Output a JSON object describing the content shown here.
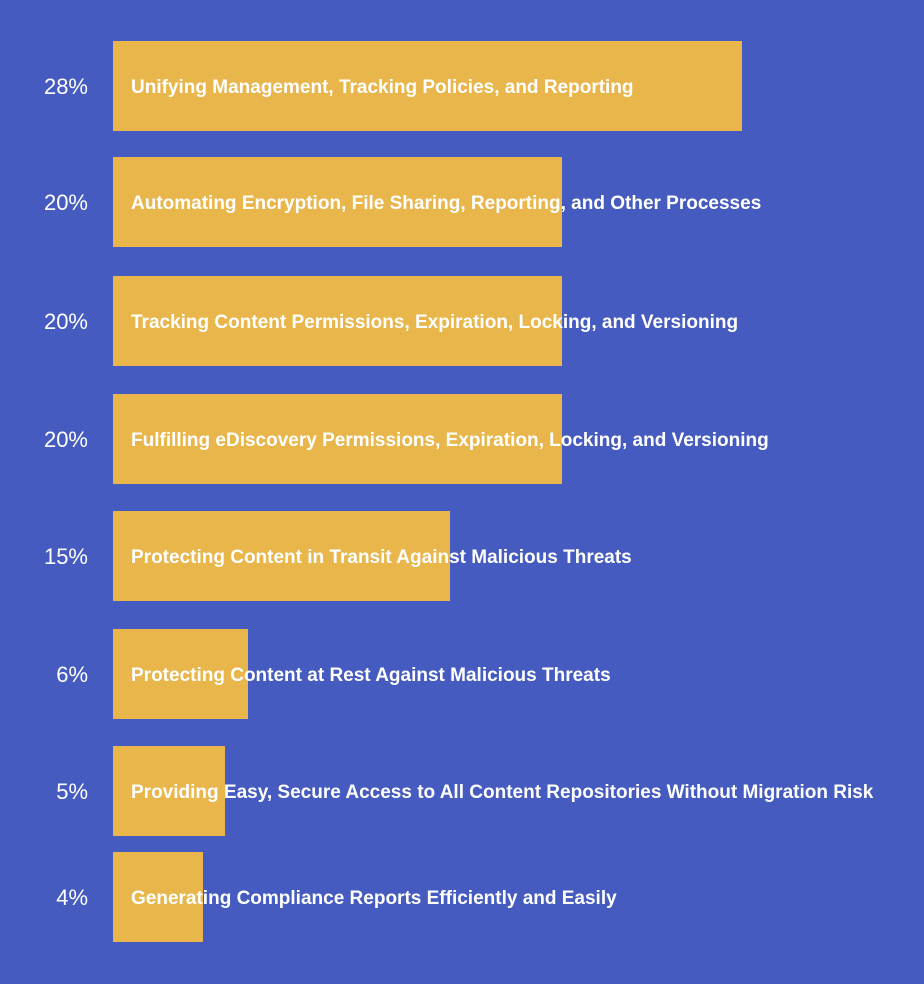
{
  "colors": {
    "background": "#455bbf",
    "bar": "#e8b64a",
    "text": "#ffffff"
  },
  "chart_data": {
    "type": "bar",
    "orientation": "horizontal",
    "categories": [
      "Unifying Management, Tracking Policies, and Reporting",
      "Automating Encryption, File Sharing, Reporting, and Other Processes",
      "Tracking Content Permissions, Expiration, Locking, and Versioning",
      "Fulfilling eDiscovery Permissions, Expiration, Locking, and Versioning",
      "Protecting Content in Transit Against Malicious Threats",
      "Protecting Content at Rest Against Malicious Threats",
      "Providing Easy, Secure Access to All Content Repositories Without Migration Risk",
      "Generating Compliance Reports Efficiently and Easily"
    ],
    "values": [
      28,
      20,
      20,
      20,
      15,
      6,
      5,
      4
    ],
    "value_labels": [
      "28%",
      "20%",
      "20%",
      "20%",
      "15%",
      "6%",
      "5%",
      "4%"
    ],
    "unit": "%",
    "xlim": [
      0,
      28
    ],
    "grid": false,
    "legend": "none"
  }
}
